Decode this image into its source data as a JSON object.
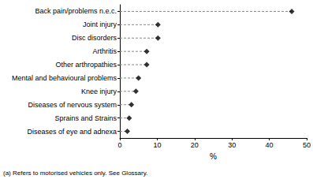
{
  "chart_data": {
    "type": "scatter",
    "orientation": "horizontal",
    "marker": "diamond",
    "line_style": "dashed",
    "color": "#000000",
    "categories": [
      "Back pain/problems n.e.c.",
      "Joint injury",
      "Disc disorders",
      "Arthritis",
      "Other arthropathies",
      "Mental and behavioural problems",
      "Knee injury",
      "Diseases of nervous system",
      "Sprains and Strains",
      "Diseases of eye and adnexa"
    ],
    "values": [
      46,
      10.2,
      10.2,
      7.2,
      7.2,
      5,
      4.3,
      3.1,
      2.5,
      2
    ],
    "xlabel": "%",
    "xlim": [
      0,
      50
    ],
    "xticks": [
      0,
      10,
      20,
      30,
      40,
      50
    ],
    "grid": false,
    "annotations": [
      "(a) Refers to motorised vehicles only. See Glossary."
    ]
  }
}
